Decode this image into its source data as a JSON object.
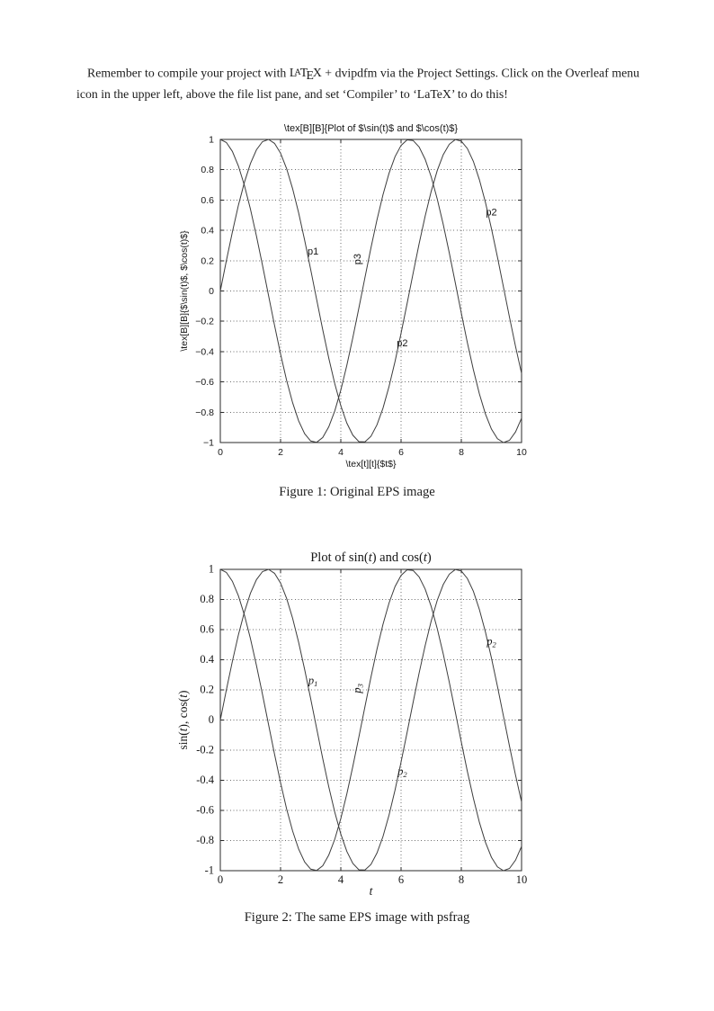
{
  "intro": {
    "text_before_logo": "Remember to compile your project with ",
    "latex_logo": {
      "l1": "L",
      "l2": "A",
      "l3": "T",
      "l4": "E",
      "l5": "X"
    },
    "text_after_logo": " + dvipdfm via the Project Settings. Click on the Overleaf menu icon in the upper left, above the file list pane, and set ‘Compiler’ to ‘LaTeX’ to do this!"
  },
  "figures": [
    {
      "caption": "Figure 1: Original EPS image"
    },
    {
      "caption": "Figure 2: The same EPS image with psfrag"
    }
  ],
  "chart_data": [
    {
      "type": "line",
      "title": "\\tex[B][B]{Plot of $\\sin(t)$ and $\\cos(t)$}",
      "xlabel": "\\tex[t][t]{$t$}",
      "ylabel": "\\tex[B][B]{$\\sin(t)$, $\\cos(t)$}",
      "xlim": [
        0,
        10
      ],
      "ylim": [
        -1,
        1
      ],
      "grid": true,
      "legend": "none",
      "xticks": [
        0,
        2,
        4,
        6,
        8,
        10
      ],
      "xtick_labels": [
        "0",
        "2",
        "4",
        "6",
        "8",
        "10"
      ],
      "yticks": [
        1,
        0.8,
        0.6,
        0.4,
        0.2,
        0,
        -0.2,
        -0.4,
        -0.6,
        -0.8,
        -1
      ],
      "ytick_labels": [
        "1",
        "0.8",
        "0.6",
        "0.4",
        "0.2",
        "0",
        "−0.2",
        "−0.4",
        "−0.6",
        "−0.8",
        "−1"
      ],
      "annotations": [
        {
          "text": "p1",
          "x": 3.08,
          "y": 0.24,
          "rotation": 0
        },
        {
          "text": "p3",
          "x": 4.66,
          "y": 0.21,
          "rotation": -90
        },
        {
          "text": "p2",
          "x": 9.0,
          "y": 0.5,
          "rotation": 0
        },
        {
          "text": "p2",
          "x": 6.04,
          "y": -0.365,
          "rotation": 0
        }
      ],
      "x": [
        0,
        0.2,
        0.4,
        0.6,
        0.8,
        1,
        1.2,
        1.4,
        1.6,
        1.8,
        2,
        2.2,
        2.4,
        2.6,
        2.8,
        3,
        3.2,
        3.4,
        3.6,
        3.8,
        4,
        4.2,
        4.4,
        4.6,
        4.8,
        5,
        5.2,
        5.4,
        5.6,
        5.8,
        6,
        6.2,
        6.4,
        6.6,
        6.8,
        7,
        7.2,
        7.4,
        7.6,
        7.8,
        8,
        8.2,
        8.4,
        8.6,
        8.8,
        9,
        9.2,
        9.4,
        9.6,
        9.8,
        10
      ],
      "series": [
        {
          "name": "sin(t)",
          "values": [
            0,
            0.199,
            0.389,
            0.565,
            0.717,
            0.841,
            0.932,
            0.985,
            1,
            0.974,
            0.909,
            0.808,
            0.675,
            0.516,
            0.335,
            0.141,
            -0.058,
            -0.256,
            -0.443,
            -0.612,
            -0.757,
            -0.872,
            -0.952,
            -0.994,
            -0.996,
            -0.959,
            -0.883,
            -0.773,
            -0.631,
            -0.465,
            -0.279,
            -0.083,
            0.117,
            0.312,
            0.494,
            0.657,
            0.794,
            0.899,
            0.968,
            0.999,
            0.989,
            0.94,
            0.855,
            0.734,
            0.585,
            0.412,
            0.223,
            0.025,
            -0.174,
            -0.366,
            -0.544
          ]
        },
        {
          "name": "cos(t)",
          "values": [
            1,
            0.98,
            0.921,
            0.825,
            0.697,
            0.54,
            0.362,
            0.17,
            -0.029,
            -0.227,
            -0.416,
            -0.589,
            -0.737,
            -0.857,
            -0.942,
            -0.99,
            -0.998,
            -0.967,
            -0.896,
            -0.791,
            -0.654,
            -0.49,
            -0.307,
            -0.112,
            0.087,
            0.284,
            0.469,
            0.635,
            0.776,
            0.886,
            0.96,
            0.997,
            0.993,
            0.95,
            0.869,
            0.754,
            0.608,
            0.439,
            0.252,
            0.054,
            -0.146,
            -0.34,
            -0.519,
            -0.679,
            -0.811,
            -0.911,
            -0.975,
            -1,
            -0.985,
            -0.93,
            -0.839
          ]
        }
      ]
    },
    {
      "type": "line",
      "title": [
        {
          "text": "Plot of sin("
        },
        {
          "text": "t",
          "italic": true
        },
        {
          "text": ") and cos("
        },
        {
          "text": "t",
          "italic": true
        },
        {
          "text": ")"
        }
      ],
      "xlabel": [
        {
          "text": "t",
          "italic": true
        }
      ],
      "ylabel": [
        {
          "text": "sin("
        },
        {
          "text": "t",
          "italic": true
        },
        {
          "text": "), cos("
        },
        {
          "text": "t",
          "italic": true
        },
        {
          "text": ")"
        }
      ],
      "xlim": [
        0,
        10
      ],
      "ylim": [
        -1,
        1
      ],
      "grid": true,
      "legend": "none",
      "xticks": [
        0,
        2,
        4,
        6,
        8,
        10
      ],
      "xtick_labels": [
        "0",
        "2",
        "4",
        "6",
        "8",
        "10"
      ],
      "yticks": [
        1,
        0.8,
        0.6,
        0.4,
        0.2,
        0,
        -0.2,
        -0.4,
        -0.6,
        -0.8,
        -1
      ],
      "ytick_labels": [
        "1",
        "0.8",
        "0.6",
        "0.4",
        "0.2",
        "0",
        "-0.2",
        "-0.4",
        "-0.6",
        "-0.8",
        "-1"
      ],
      "annotations": [
        {
          "text": "p",
          "sub": "1",
          "x": 3.08,
          "y": 0.24,
          "rotation": 0
        },
        {
          "text": "p",
          "sub": "3",
          "x": 4.66,
          "y": 0.21,
          "rotation": -90
        },
        {
          "text": "p",
          "sub": "2",
          "x": 9.0,
          "y": 0.5,
          "rotation": 0
        },
        {
          "text": "p",
          "sub": "2",
          "x": 6.04,
          "y": -0.365,
          "rotation": 0
        }
      ],
      "x": [
        0,
        0.2,
        0.4,
        0.6,
        0.8,
        1,
        1.2,
        1.4,
        1.6,
        1.8,
        2,
        2.2,
        2.4,
        2.6,
        2.8,
        3,
        3.2,
        3.4,
        3.6,
        3.8,
        4,
        4.2,
        4.4,
        4.6,
        4.8,
        5,
        5.2,
        5.4,
        5.6,
        5.8,
        6,
        6.2,
        6.4,
        6.6,
        6.8,
        7,
        7.2,
        7.4,
        7.6,
        7.8,
        8,
        8.2,
        8.4,
        8.6,
        8.8,
        9,
        9.2,
        9.4,
        9.6,
        9.8,
        10
      ],
      "series": [
        {
          "name": "sin(t)",
          "values": [
            0,
            0.199,
            0.389,
            0.565,
            0.717,
            0.841,
            0.932,
            0.985,
            1,
            0.974,
            0.909,
            0.808,
            0.675,
            0.516,
            0.335,
            0.141,
            -0.058,
            -0.256,
            -0.443,
            -0.612,
            -0.757,
            -0.872,
            -0.952,
            -0.994,
            -0.996,
            -0.959,
            -0.883,
            -0.773,
            -0.631,
            -0.465,
            -0.279,
            -0.083,
            0.117,
            0.312,
            0.494,
            0.657,
            0.794,
            0.899,
            0.968,
            0.999,
            0.989,
            0.94,
            0.855,
            0.734,
            0.585,
            0.412,
            0.223,
            0.025,
            -0.174,
            -0.366,
            -0.544
          ]
        },
        {
          "name": "cos(t)",
          "values": [
            1,
            0.98,
            0.921,
            0.825,
            0.697,
            0.54,
            0.362,
            0.17,
            -0.029,
            -0.227,
            -0.416,
            -0.589,
            -0.737,
            -0.857,
            -0.942,
            -0.99,
            -0.998,
            -0.967,
            -0.896,
            -0.791,
            -0.654,
            -0.49,
            -0.307,
            -0.112,
            0.087,
            0.284,
            0.469,
            0.635,
            0.776,
            0.886,
            0.96,
            0.997,
            0.993,
            0.95,
            0.869,
            0.754,
            0.608,
            0.439,
            0.252,
            0.054,
            -0.146,
            -0.34,
            -0.519,
            -0.679,
            -0.811,
            -0.911,
            -0.975,
            -1,
            -0.985,
            -0.93,
            -0.839
          ]
        }
      ]
    }
  ]
}
